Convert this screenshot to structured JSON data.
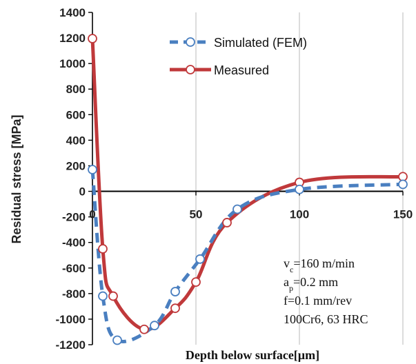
{
  "chart_data": {
    "type": "line",
    "xlabel": "Depth below surface[µm]",
    "ylabel": "Residual stress [MPa]",
    "xlim": [
      0,
      150
    ],
    "ylim": [
      -1200,
      1400
    ],
    "x_ticks": [
      "0",
      "50",
      "100",
      "150"
    ],
    "y_ticks": [
      "1400",
      "1200",
      "1000",
      "800",
      "600",
      "400",
      "200",
      "0",
      "-200",
      "-400",
      "-600",
      "-800",
      "-1000",
      "-1200"
    ],
    "grid": "vertical",
    "legend_position": "top-right",
    "series": [
      {
        "name": "Simulated (FEM)",
        "color": "#4a7fc0",
        "style": "dashed",
        "points": [
          [
            0,
            170
          ],
          [
            5,
            -820
          ],
          [
            12,
            -1165
          ],
          [
            30,
            -1050
          ],
          [
            40,
            -785
          ],
          [
            52,
            -530
          ],
          [
            70,
            -140
          ],
          [
            100,
            15
          ],
          [
            150,
            55
          ]
        ]
      },
      {
        "name": "Measured",
        "color": "#c0393b",
        "style": "solid",
        "points": [
          [
            0,
            1195
          ],
          [
            5,
            -450
          ],
          [
            10,
            -820
          ],
          [
            25,
            -1080
          ],
          [
            40,
            -915
          ],
          [
            50,
            -710
          ],
          [
            65,
            -245
          ],
          [
            100,
            70
          ],
          [
            150,
            115
          ]
        ]
      }
    ],
    "annotations": [
      {
        "main": "v",
        "sub": "c",
        "rest": "=160 m/min"
      },
      {
        "main": "a",
        "sub": "p",
        "rest": "=0.2 mm"
      },
      {
        "main": "f=0.1 mm/rev",
        "sub": "",
        "rest": ""
      },
      {
        "main": "100Cr6, 63 HRC",
        "sub": "",
        "rest": ""
      }
    ]
  }
}
